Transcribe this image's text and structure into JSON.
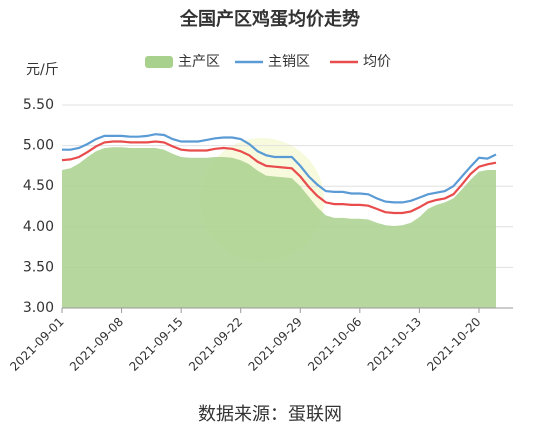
{
  "chart_data": {
    "type": "line",
    "title": "全国产区鸡蛋均价走势",
    "y_label": "元/斤",
    "source": "数据来源：蛋联网",
    "legend": "top",
    "grid": true,
    "x": [
      "2021-09-01",
      "2021-09-02",
      "2021-09-03",
      "2021-09-04",
      "2021-09-05",
      "2021-09-06",
      "2021-09-07",
      "2021-09-08",
      "2021-09-09",
      "2021-09-10",
      "2021-09-11",
      "2021-09-12",
      "2021-09-13",
      "2021-09-14",
      "2021-09-15",
      "2021-09-16",
      "2021-09-17",
      "2021-09-18",
      "2021-09-19",
      "2021-09-20",
      "2021-09-21",
      "2021-09-22",
      "2021-09-23",
      "2021-09-24",
      "2021-09-25",
      "2021-09-26",
      "2021-09-27",
      "2021-09-28",
      "2021-09-29",
      "2021-09-30",
      "2021-10-01",
      "2021-10-02",
      "2021-10-03",
      "2021-10-04",
      "2021-10-05",
      "2021-10-06",
      "2021-10-07",
      "2021-10-08",
      "2021-10-09",
      "2021-10-10",
      "2021-10-11",
      "2021-10-12",
      "2021-10-13",
      "2021-10-14",
      "2021-10-15",
      "2021-10-16",
      "2021-10-17",
      "2021-10-18",
      "2021-10-19",
      "2021-10-20",
      "2021-10-21",
      "2021-10-22"
    ],
    "xlim": [
      "2021-09-01",
      "2021-10-24"
    ],
    "xticks": [
      "2021-09-01",
      "2021-09-08",
      "2021-09-15",
      "2021-09-22",
      "2021-09-29",
      "2021-10-06",
      "2021-10-13",
      "2021-10-20"
    ],
    "ylim": [
      3,
      5.5
    ],
    "yticks": [
      {
        "value": 3,
        "label": "3.00"
      },
      {
        "value": 3.5,
        "label": "3.50"
      },
      {
        "value": 4,
        "label": "4.00"
      },
      {
        "value": 4.5,
        "label": "4.50"
      },
      {
        "value": 5,
        "label": "5.00"
      },
      {
        "value": 5.5,
        "label": "5.50"
      }
    ],
    "series": [
      {
        "name": "主产区",
        "type": "area",
        "color": "#a9d18e",
        "values": [
          4.7,
          4.72,
          4.78,
          4.86,
          4.93,
          4.97,
          4.98,
          4.98,
          4.97,
          4.97,
          4.97,
          4.97,
          4.95,
          4.9,
          4.86,
          4.85,
          4.85,
          4.85,
          4.86,
          4.86,
          4.85,
          4.82,
          4.77,
          4.69,
          4.63,
          4.62,
          4.61,
          4.6,
          4.5,
          4.37,
          4.24,
          4.14,
          4.11,
          4.11,
          4.1,
          4.1,
          4.09,
          4.05,
          4.02,
          4.01,
          4.02,
          4.05,
          4.12,
          4.22,
          4.27,
          4.3,
          4.35,
          4.46,
          4.58,
          4.68,
          4.7,
          4.7
        ]
      },
      {
        "name": "主销区",
        "type": "line",
        "color": "#5b9bd5",
        "values": [
          4.95,
          4.95,
          4.97,
          5.02,
          5.08,
          5.12,
          5.12,
          5.12,
          5.11,
          5.11,
          5.12,
          5.14,
          5.13,
          5.08,
          5.05,
          5.05,
          5.05,
          5.07,
          5.09,
          5.1,
          5.1,
          5.08,
          5.02,
          4.93,
          4.88,
          4.86,
          4.86,
          4.86,
          4.75,
          4.62,
          4.52,
          4.44,
          4.43,
          4.43,
          4.41,
          4.41,
          4.4,
          4.35,
          4.31,
          4.3,
          4.3,
          4.32,
          4.36,
          4.4,
          4.42,
          4.44,
          4.5,
          4.62,
          4.74,
          4.85,
          4.84,
          4.89
        ]
      },
      {
        "name": "均价",
        "type": "line",
        "color": "#e84c4c",
        "values": [
          4.82,
          4.83,
          4.86,
          4.92,
          4.99,
          5.04,
          5.05,
          5.05,
          5.04,
          5.04,
          5.04,
          5.05,
          5.04,
          4.99,
          4.95,
          4.94,
          4.94,
          4.94,
          4.96,
          4.97,
          4.96,
          4.93,
          4.88,
          4.8,
          4.75,
          4.74,
          4.73,
          4.72,
          4.62,
          4.49,
          4.38,
          4.3,
          4.28,
          4.28,
          4.27,
          4.27,
          4.26,
          4.22,
          4.18,
          4.17,
          4.17,
          4.19,
          4.24,
          4.3,
          4.33,
          4.35,
          4.4,
          4.52,
          4.65,
          4.74,
          4.77,
          4.79
        ]
      }
    ]
  }
}
